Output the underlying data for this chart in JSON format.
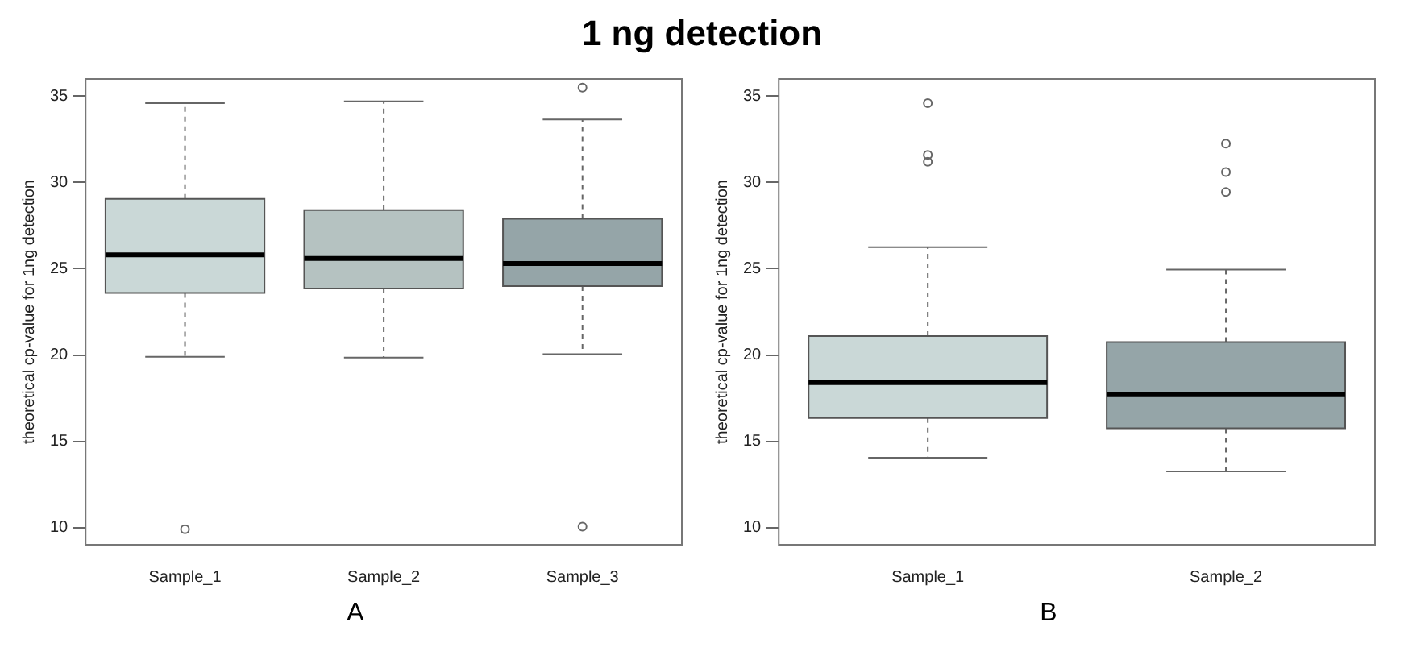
{
  "chart_data": [
    {
      "type": "box",
      "title": "1 ng detection",
      "ylabel": "theoretical cp-value for 1ng detection",
      "categories": [
        "Sample_1",
        "Sample_2",
        "Sample_3"
      ],
      "colors": [
        "#cad8d7",
        "#b5c2c1",
        "#95a5a8"
      ],
      "boxes": [
        {
          "low": 19.9,
          "q1": 23.6,
          "median": 25.8,
          "q3": 29.05,
          "high": 34.6,
          "outliers": [
            9.9
          ]
        },
        {
          "low": 19.85,
          "q1": 23.85,
          "median": 25.6,
          "q3": 28.4,
          "high": 34.7
        },
        {
          "low": 20.05,
          "q1": 24.0,
          "median": 25.3,
          "q3": 27.9,
          "high": 33.65,
          "outliers": [
            35.5,
            10.05
          ]
        }
      ],
      "ylim": [
        9,
        36
      ],
      "yticks": [
        10,
        15,
        20,
        25,
        30,
        35
      ],
      "grid": false,
      "annotations": [
        "A"
      ]
    },
    {
      "type": "box",
      "ylabel": "theoretical cp-value for 1ng detection",
      "categories": [
        "Sample_1",
        "Sample_2"
      ],
      "colors": [
        "#cad8d7",
        "#95a5a8"
      ],
      "boxes": [
        {
          "low": 14.05,
          "q1": 16.35,
          "median": 18.4,
          "q3": 21.1,
          "high": 26.25,
          "outliers": [
            34.6,
            31.6,
            31.2
          ]
        },
        {
          "low": 13.25,
          "q1": 15.75,
          "median": 17.7,
          "q3": 20.75,
          "high": 24.95,
          "outliers": [
            32.25,
            30.6,
            29.45
          ]
        }
      ],
      "ylim": [
        9,
        36
      ],
      "yticks": [
        10,
        15,
        20,
        25,
        30,
        35
      ],
      "grid": false,
      "annotations": [
        "B"
      ]
    }
  ]
}
